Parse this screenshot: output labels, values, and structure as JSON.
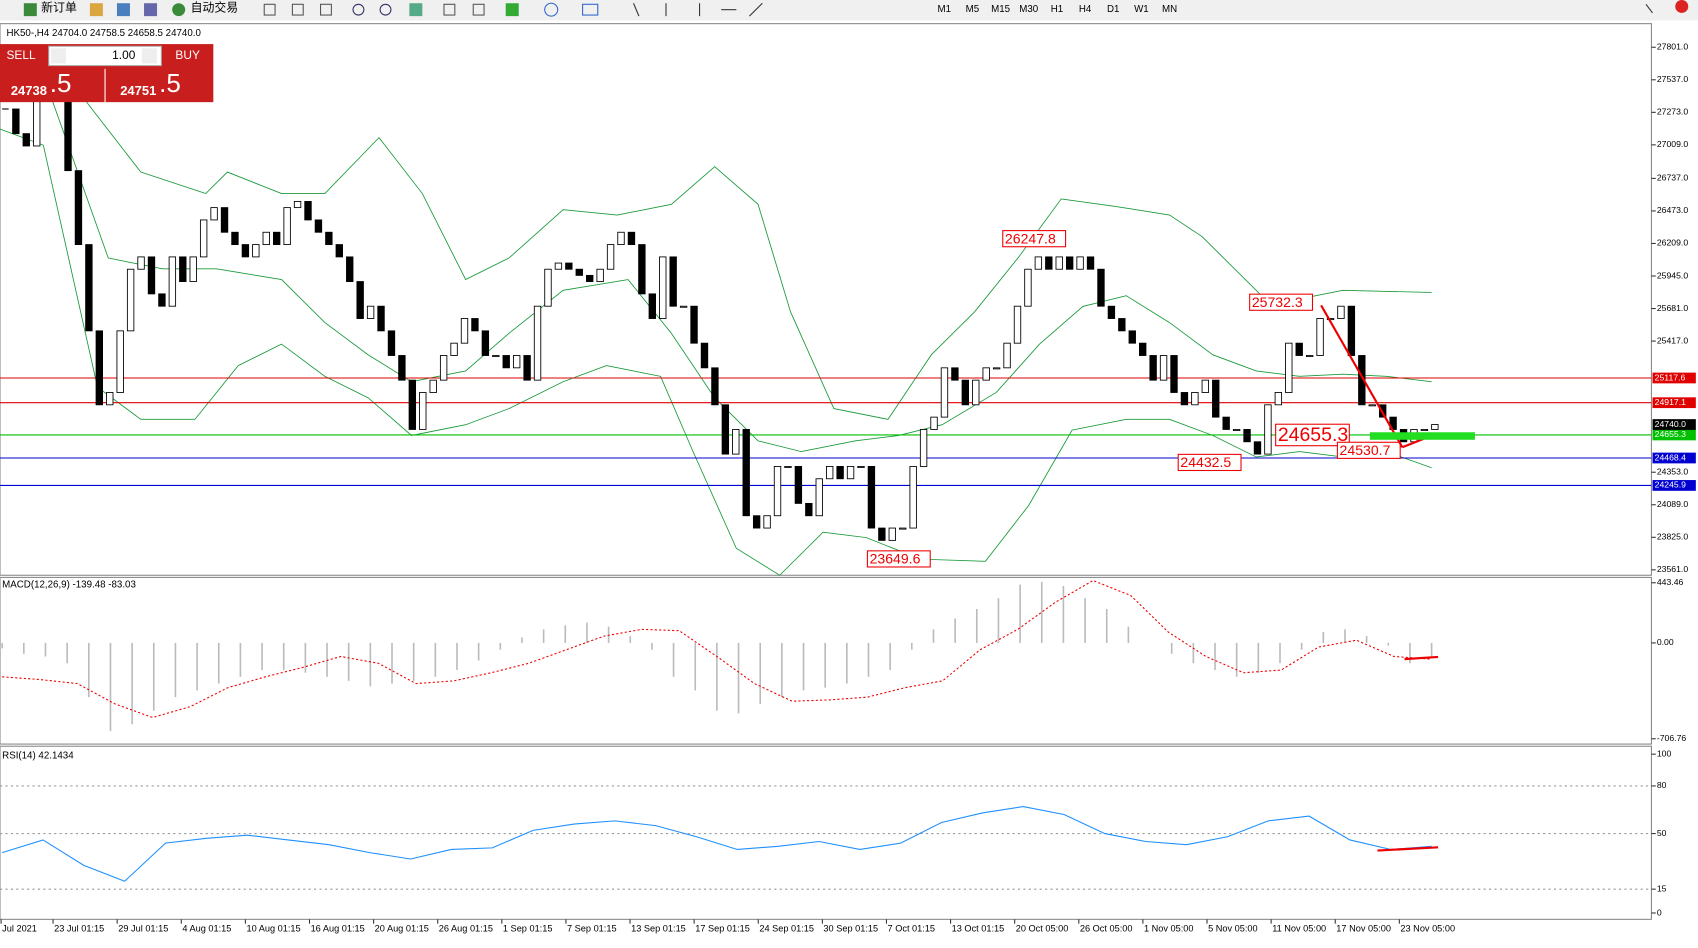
{
  "toolbar": {
    "new_order": "新订单",
    "auto_trading": "自动交易",
    "timeframes": [
      "M1",
      "M5",
      "M15",
      "M30",
      "H1",
      "H4",
      "D1",
      "W1",
      "MN"
    ]
  },
  "trade_panel": {
    "sell": "SELL",
    "lot": "1.00",
    "buy": "BUY",
    "sell_price_main": "24738",
    "sell_price_frac": ".5",
    "buy_price_main": "24751",
    "buy_price_frac": ".5"
  },
  "chart": {
    "symbol_info": "HK50-,H4  24704.0 24758.5 24658.5 24740.0",
    "ylim": [
      23517,
      27975
    ],
    "yticks": [
      {
        "value": 27801,
        "label": "27801.0"
      },
      {
        "value": 27537,
        "label": "27537.0"
      },
      {
        "value": 27273,
        "label": "27273.0"
      },
      {
        "value": 27009,
        "label": "27009.0"
      },
      {
        "value": 26737,
        "label": "26737.0"
      },
      {
        "value": 26473,
        "label": "26473.0"
      },
      {
        "value": 26209,
        "label": "26209.0"
      },
      {
        "value": 25945,
        "label": "25945.0"
      },
      {
        "value": 25681,
        "label": "25681.0"
      },
      {
        "value": 25417,
        "label": "25417.0"
      },
      {
        "value": 24353,
        "label": "24353.0"
      },
      {
        "value": 24089,
        "label": "24089.0"
      },
      {
        "value": 23825,
        "label": "23825.0"
      },
      {
        "value": 23561,
        "label": "23561.0"
      }
    ],
    "hlines": [
      {
        "value": 25117.6,
        "label": "25117.6",
        "color": "#e00000"
      },
      {
        "value": 24917.1,
        "label": "24917.1",
        "color": "#e00000"
      },
      {
        "value": 24468.4,
        "label": "24468.4",
        "color": "#0000d0"
      },
      {
        "value": 24245.9,
        "label": "24245.9",
        "color": "#0000d0"
      },
      {
        "value": 24655.3,
        "label": "24655.3",
        "color": "#00c000"
      }
    ],
    "current_price": {
      "value": 24740,
      "label": "24740.0"
    },
    "annotations": [
      26247.8,
      25732.3,
      24655.3,
      24530.7,
      24432.5,
      23649.6
    ],
    "closes": [
      27300,
      27100,
      27000,
      27400,
      27500,
      27450,
      26800,
      26200,
      25500,
      24900,
      25000,
      25500,
      26000,
      26100,
      25800,
      25700,
      26100,
      25900,
      26100,
      26400,
      26500,
      26300,
      26200,
      26100,
      26200,
      26300,
      26200,
      26500,
      26550,
      26400,
      26300,
      26200,
      26100,
      25900,
      25600,
      25700,
      25500,
      25300,
      25100,
      24700,
      25000,
      25100,
      25300,
      25400,
      25600,
      25500,
      25300,
      25300,
      25200,
      25300,
      25100,
      25700,
      26000,
      26050,
      26000,
      25950,
      25900,
      26000,
      26200,
      26300,
      26200,
      25800,
      25600,
      26100,
      25700,
      25700,
      25400,
      25200,
      24900,
      24500,
      24700,
      24000,
      23900,
      24000,
      24400,
      24400,
      24100,
      24000,
      24300,
      24400,
      24300,
      24400,
      24400,
      23900,
      23800,
      23900,
      23900,
      24400,
      24700,
      24800,
      25200,
      25100,
      24900,
      25100,
      25200,
      25200,
      25400,
      25700,
      26000,
      26100,
      26000,
      26100,
      26000,
      26100,
      26000,
      25700,
      25600,
      25500,
      25400,
      25300,
      25100,
      25300,
      25000,
      24900,
      25000,
      25100,
      24800,
      24700,
      24700,
      24600,
      24500,
      24900,
      25000,
      25400,
      25300,
      25300,
      25600,
      25600,
      25700,
      25300,
      24900,
      24900,
      24800,
      24700,
      24600,
      24700,
      24700,
      24740
    ],
    "time_labels": [
      "Jul 2021",
      "23 Jul 01:15",
      "29 Jul 01:15",
      "4 Aug 01:15",
      "10 Aug 01:15",
      "16 Aug 01:15",
      "20 Aug 01:15",
      "26 Aug 01:15",
      "1 Sep 01:15",
      "7 Sep 01:15",
      "13 Sep 01:15",
      "17 Sep 01:15",
      "24 Sep 01:15",
      "30 Sep 01:15",
      "7 Oct 01:15",
      "13 Oct 01:15",
      "20 Oct 05:00",
      "26 Oct 05:00",
      "1 Nov 05:00",
      "5 Nov 05:00",
      "11 Nov 05:00",
      "17 Nov 05:00",
      "23 Nov 05:00"
    ]
  },
  "macd": {
    "label": "MACD(12,26,9) -139.48 -83.03",
    "ylim": [
      -746,
      483
    ],
    "yticks": [
      443.46,
      {
        "value": 0,
        "label": "0.00"
      },
      -706.76
    ],
    "histogram": [
      -40,
      -80,
      -100,
      -150,
      -400,
      -650,
      -600,
      -500,
      -400,
      -350,
      -300,
      -250,
      -200,
      -200,
      -220,
      -250,
      -280,
      -320,
      -300,
      -280,
      -250,
      -200,
      -130,
      -50,
      40,
      100,
      130,
      150,
      120,
      50,
      -50,
      -250,
      -350,
      -500,
      -520,
      -450,
      -400,
      -350,
      -330,
      -300,
      -250,
      -200,
      -50,
      100,
      180,
      250,
      330,
      430,
      450,
      420,
      330,
      250,
      120,
      0,
      -80,
      -150,
      -200,
      -250,
      -220,
      -150,
      -50,
      80,
      100,
      50,
      -20,
      -150,
      -100
    ],
    "signal": [
      -250,
      -270,
      -300,
      -450,
      -550,
      -470,
      -330,
      -250,
      -180,
      -100,
      -150,
      -300,
      -280,
      -220,
      -150,
      -50,
      50,
      100,
      90,
      -100,
      -300,
      -430,
      -420,
      -400,
      -330,
      -280,
      -50,
      100,
      300,
      460,
      350,
      80,
      -100,
      -220,
      -200,
      -30,
      20,
      -100,
      -120
    ]
  },
  "rsi": {
    "label": "RSI(14) 42.1434",
    "ylim": [
      -4,
      105
    ],
    "yticks": [
      100,
      80,
      50,
      15,
      0
    ],
    "levels": [
      80,
      50,
      15
    ],
    "values": [
      38,
      46,
      30,
      20,
      44,
      47,
      49,
      46,
      43,
      38,
      34,
      40,
      41,
      52,
      56,
      58,
      55,
      48,
      40,
      42,
      45,
      40,
      44,
      57,
      63,
      67,
      62,
      50,
      45,
      43,
      48,
      58,
      61,
      46,
      40,
      42
    ]
  }
}
